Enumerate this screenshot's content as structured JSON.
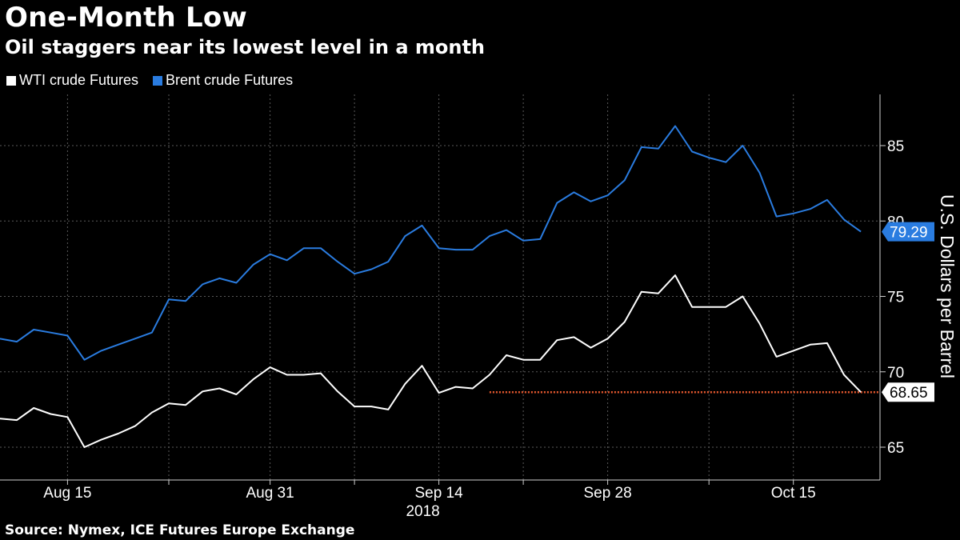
{
  "chart_data": {
    "type": "line",
    "title": "One-Month Low",
    "subtitle": "Oil staggers near its lowest level in a month",
    "source": "Source: Nymex, ICE Futures Europe Exchange",
    "ylabel": "U.S. Dollars per Barrel",
    "ylim": [
      63,
      88
    ],
    "yticks": [
      65,
      70,
      75,
      80,
      85
    ],
    "year_label": "2018",
    "x_tick_labels": [
      "Aug 15",
      "Aug 31",
      "Sep 14",
      "Sep 28",
      "Oct 15"
    ],
    "x_tick_index": [
      4,
      16,
      26,
      36,
      47
    ],
    "x_grid_index": [
      10,
      21,
      31,
      42
    ],
    "grid": true,
    "legend_position": "top-left",
    "series": [
      {
        "name": "WTI crude Futures",
        "color": "#ffffff",
        "end_label": "68.65",
        "values": [
          66.9,
          66.8,
          67.6,
          67.2,
          67.0,
          65.0,
          65.5,
          65.9,
          66.4,
          67.3,
          67.9,
          67.8,
          68.7,
          68.9,
          68.5,
          69.5,
          70.3,
          69.8,
          69.8,
          69.9,
          68.7,
          67.7,
          67.7,
          67.5,
          69.2,
          70.4,
          68.6,
          69.0,
          68.9,
          69.8,
          71.1,
          70.8,
          70.8,
          72.1,
          72.3,
          71.6,
          72.2,
          73.3,
          75.3,
          75.2,
          76.4,
          74.3,
          74.3,
          74.3,
          75.0,
          73.2,
          71.0,
          71.4,
          71.8,
          71.9,
          69.8,
          68.65
        ]
      },
      {
        "name": "Brent crude Futures",
        "color": "#2a7ce0",
        "end_label": "79.29",
        "values": [
          72.2,
          72.0,
          72.8,
          72.6,
          72.4,
          70.8,
          71.4,
          71.8,
          72.2,
          72.6,
          74.8,
          74.7,
          75.8,
          76.2,
          75.9,
          77.1,
          77.8,
          77.4,
          78.2,
          78.2,
          77.3,
          76.5,
          76.8,
          77.3,
          79.0,
          79.7,
          78.2,
          78.1,
          78.1,
          79.0,
          79.4,
          78.7,
          78.8,
          81.2,
          81.9,
          81.3,
          81.7,
          82.7,
          84.9,
          84.8,
          86.3,
          84.6,
          84.2,
          83.9,
          85.0,
          83.2,
          80.3,
          80.5,
          80.8,
          81.4,
          80.1,
          79.29
        ]
      }
    ],
    "reference_line": {
      "value": 68.65,
      "color": "#e2572e",
      "start_index": 29
    }
  }
}
